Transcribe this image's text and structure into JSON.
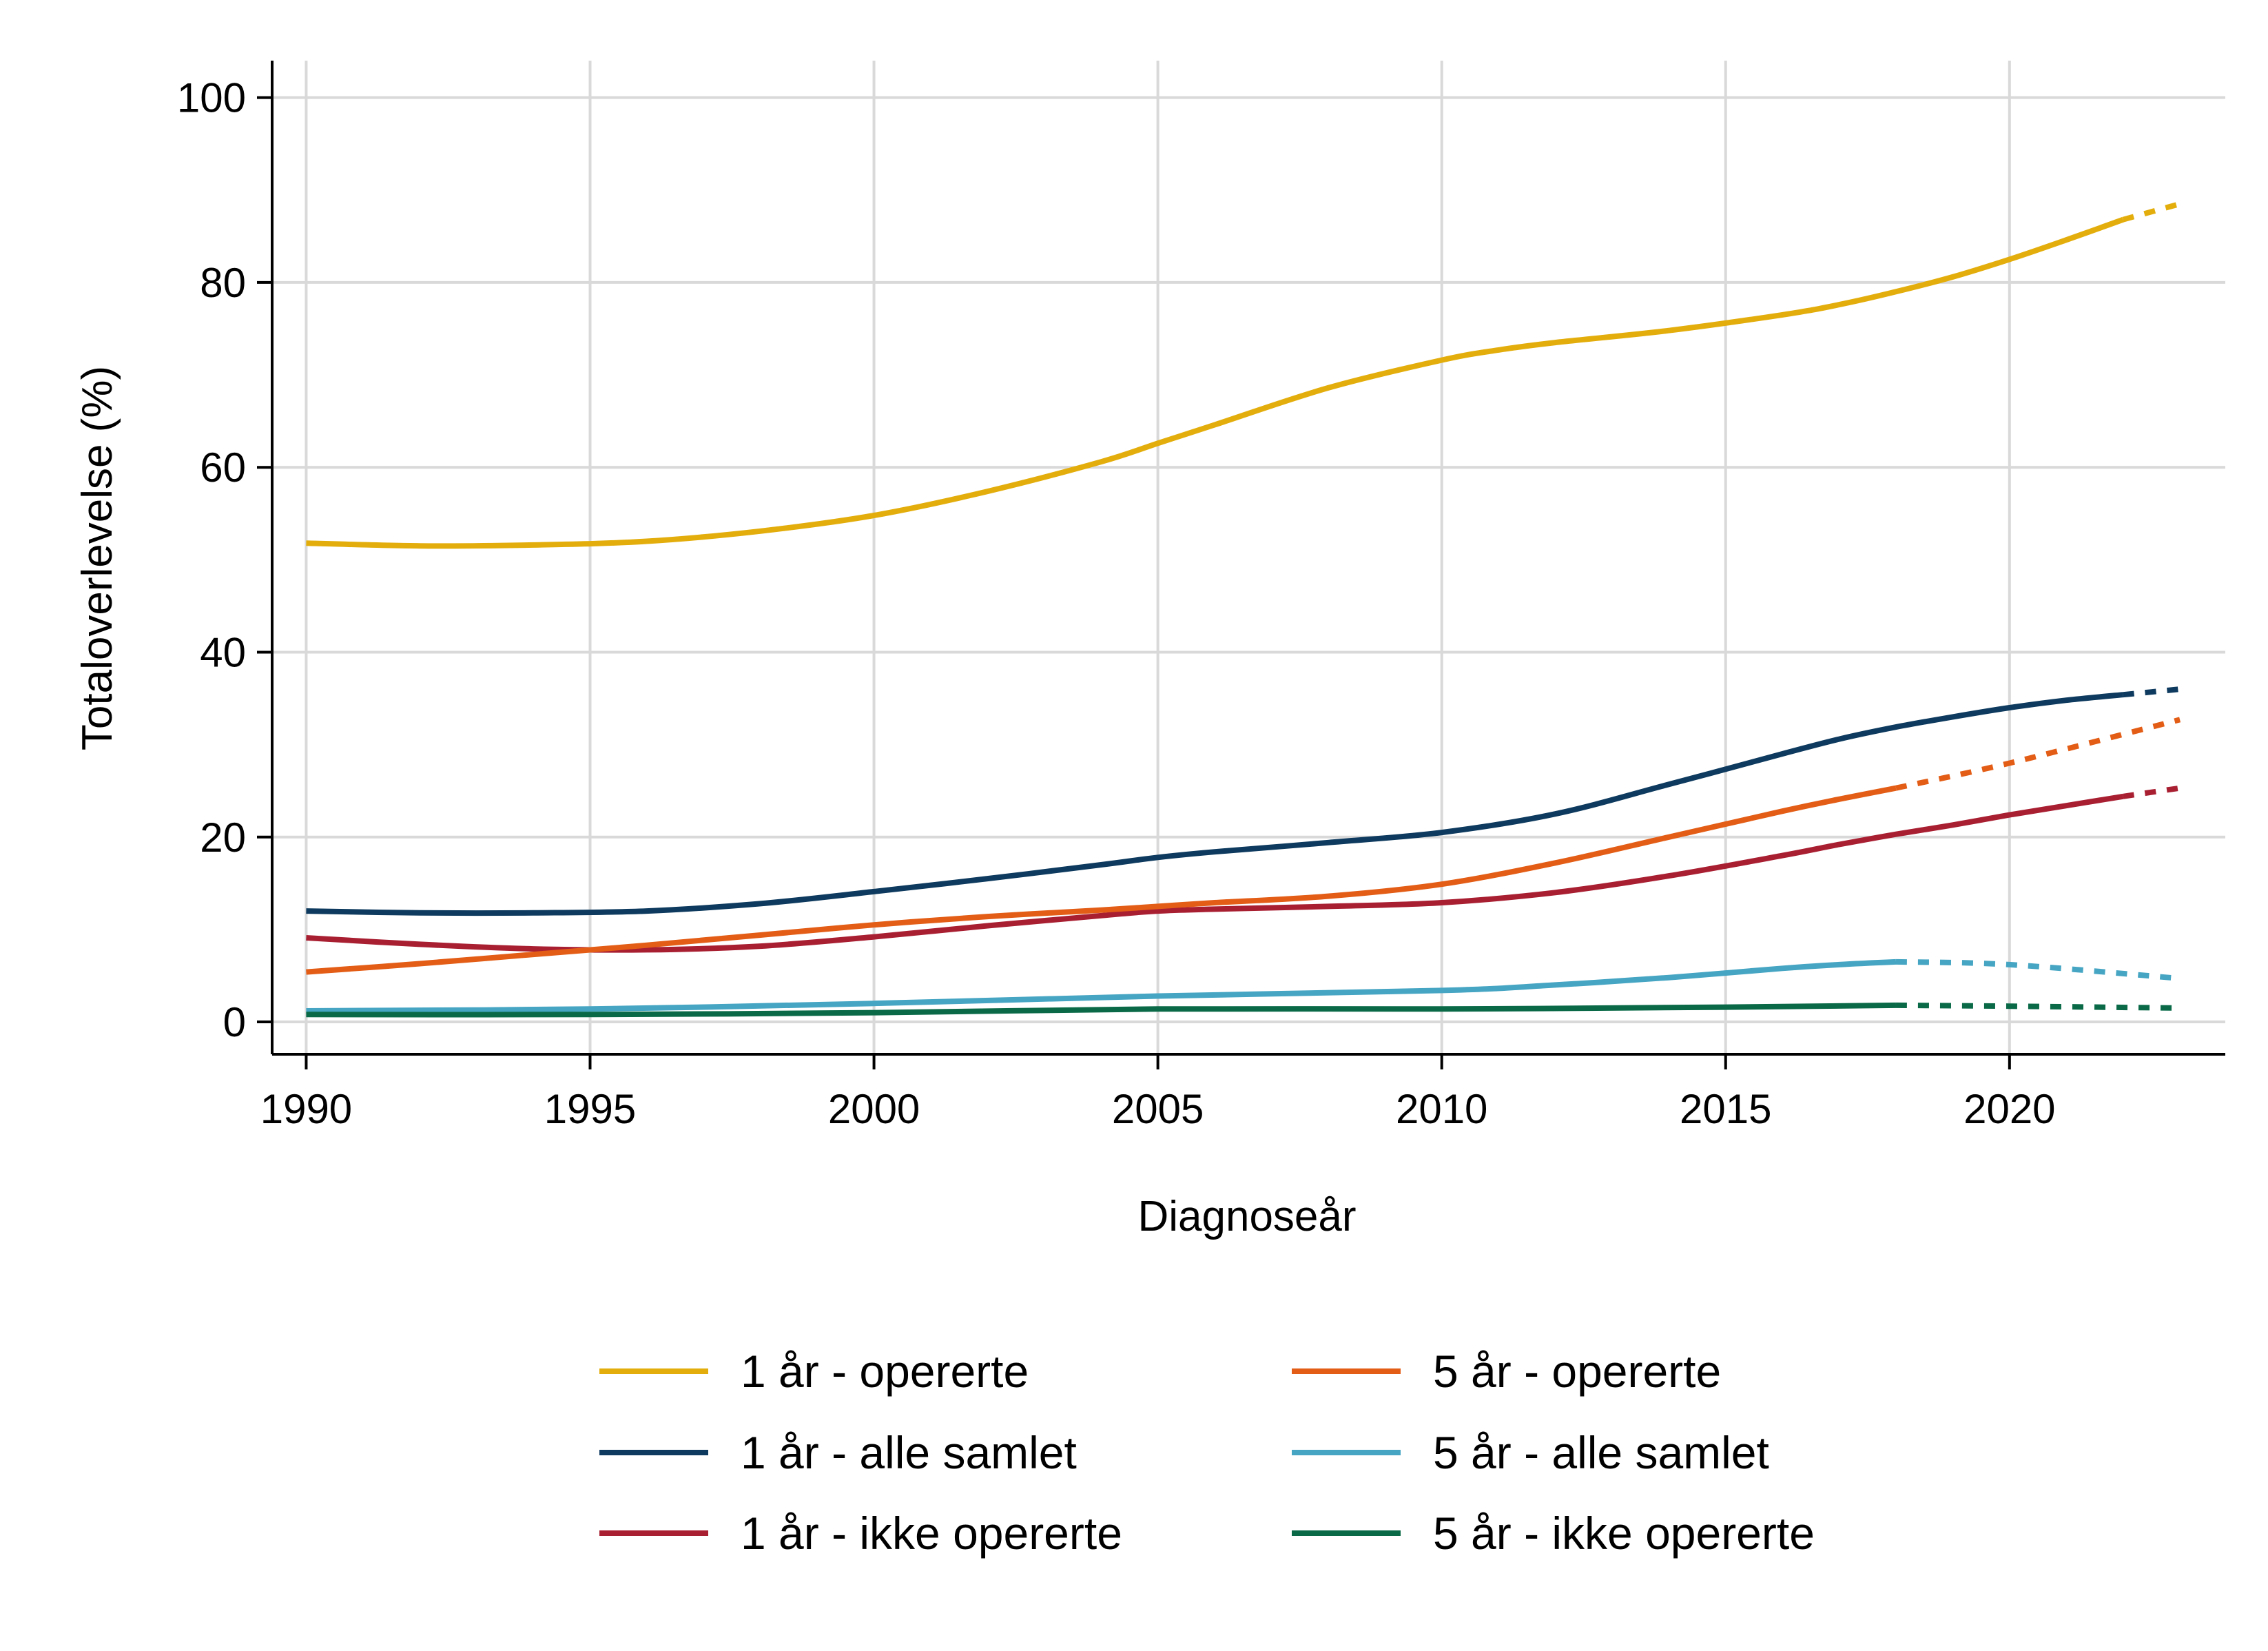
{
  "chart_data": {
    "type": "line",
    "title": "",
    "xlabel": "Diagnoseår",
    "ylabel": "Totaloverlevelse (%)",
    "xlim": [
      1989.4,
      2023.8
    ],
    "ylim": [
      -3.5,
      104
    ],
    "xticks": [
      1990,
      1995,
      2000,
      2005,
      2010,
      2015,
      2020
    ],
    "yticks": [
      0,
      20,
      40,
      60,
      80,
      100
    ],
    "grid": true,
    "legend_position": "bottom",
    "legend_columns": 2,
    "series": [
      {
        "name": "1 år - opererte",
        "color": "#E3AE0C",
        "points": [
          [
            1990,
            51.8
          ],
          [
            1992,
            51.5
          ],
          [
            1994,
            51.6
          ],
          [
            1996,
            52.0
          ],
          [
            1998,
            53.1
          ],
          [
            2000,
            54.8
          ],
          [
            2002,
            57.4
          ],
          [
            2004,
            60.6
          ],
          [
            2005,
            62.6
          ],
          [
            2006,
            64.6
          ],
          [
            2008,
            68.6
          ],
          [
            2010,
            71.6
          ],
          [
            2011,
            72.7
          ],
          [
            2012,
            73.5
          ],
          [
            2014,
            74.8
          ],
          [
            2016,
            76.5
          ],
          [
            2017,
            77.6
          ],
          [
            2018,
            79.0
          ],
          [
            2019,
            80.6
          ],
          [
            2020,
            82.5
          ],
          [
            2021,
            84.6
          ],
          [
            2022,
            86.8
          ]
        ],
        "projection": [
          [
            2022,
            86.8
          ],
          [
            2023,
            88.5
          ]
        ]
      },
      {
        "name": "1 år - alle samlet",
        "color": "#0D3A5E",
        "points": [
          [
            1990,
            12.0
          ],
          [
            1992,
            11.8
          ],
          [
            1994,
            11.8
          ],
          [
            1996,
            12.0
          ],
          [
            1998,
            12.8
          ],
          [
            2000,
            14.1
          ],
          [
            2002,
            15.5
          ],
          [
            2004,
            17.0
          ],
          [
            2005,
            17.8
          ],
          [
            2006,
            18.4
          ],
          [
            2008,
            19.4
          ],
          [
            2010,
            20.5
          ],
          [
            2012,
            22.5
          ],
          [
            2014,
            25.7
          ],
          [
            2016,
            29.0
          ],
          [
            2017,
            30.6
          ],
          [
            2018,
            31.9
          ],
          [
            2019,
            33.0
          ],
          [
            2020,
            34.0
          ],
          [
            2021,
            34.8
          ],
          [
            2022,
            35.4
          ]
        ],
        "projection": [
          [
            2022,
            35.4
          ],
          [
            2023,
            36.0
          ]
        ]
      },
      {
        "name": "1 år - ikke opererte",
        "color": "#A91F32",
        "points": [
          [
            1990,
            9.1
          ],
          [
            1992,
            8.4
          ],
          [
            1994,
            7.9
          ],
          [
            1996,
            7.8
          ],
          [
            1998,
            8.2
          ],
          [
            2000,
            9.2
          ],
          [
            2002,
            10.4
          ],
          [
            2004,
            11.5
          ],
          [
            2005,
            12.0
          ],
          [
            2006,
            12.2
          ],
          [
            2008,
            12.5
          ],
          [
            2010,
            12.9
          ],
          [
            2012,
            14.0
          ],
          [
            2014,
            15.8
          ],
          [
            2016,
            18.0
          ],
          [
            2017,
            19.2
          ],
          [
            2018,
            20.3
          ],
          [
            2019,
            21.3
          ],
          [
            2020,
            22.4
          ],
          [
            2021,
            23.4
          ],
          [
            2022,
            24.4
          ]
        ],
        "projection": [
          [
            2022,
            24.4
          ],
          [
            2023,
            25.3
          ]
        ]
      },
      {
        "name": "5 år - opererte",
        "color": "#E35D16",
        "points": [
          [
            1990,
            5.4
          ],
          [
            1992,
            6.3
          ],
          [
            1994,
            7.3
          ],
          [
            1996,
            8.3
          ],
          [
            1998,
            9.4
          ],
          [
            2000,
            10.5
          ],
          [
            2002,
            11.4
          ],
          [
            2004,
            12.1
          ],
          [
            2005,
            12.5
          ],
          [
            2006,
            12.9
          ],
          [
            2008,
            13.6
          ],
          [
            2010,
            14.9
          ],
          [
            2012,
            17.2
          ],
          [
            2014,
            20.0
          ],
          [
            2016,
            22.8
          ],
          [
            2017,
            24.1
          ],
          [
            2018,
            25.3
          ]
        ],
        "projection": [
          [
            2018,
            25.3
          ],
          [
            2020,
            28.0
          ],
          [
            2023,
            32.7
          ]
        ]
      },
      {
        "name": "5 år - alle samlet",
        "color": "#45A5C3",
        "points": [
          [
            1990,
            1.2
          ],
          [
            1995,
            1.4
          ],
          [
            2000,
            2.0
          ],
          [
            2005,
            2.8
          ],
          [
            2010,
            3.4
          ],
          [
            2012,
            4.0
          ],
          [
            2014,
            4.8
          ],
          [
            2016,
            5.8
          ],
          [
            2017,
            6.2
          ],
          [
            2018,
            6.5
          ]
        ],
        "projection": [
          [
            2018,
            6.5
          ],
          [
            2020,
            6.2
          ],
          [
            2023,
            4.7
          ]
        ]
      },
      {
        "name": "5 år - ikke opererte",
        "color": "#0A6A48",
        "points": [
          [
            1990,
            0.8
          ],
          [
            1995,
            0.8
          ],
          [
            2000,
            1.0
          ],
          [
            2005,
            1.4
          ],
          [
            2010,
            1.4
          ],
          [
            2015,
            1.6
          ],
          [
            2018,
            1.8
          ]
        ],
        "projection": [
          [
            2018,
            1.8
          ],
          [
            2020,
            1.7
          ],
          [
            2023,
            1.5
          ]
        ]
      }
    ]
  }
}
